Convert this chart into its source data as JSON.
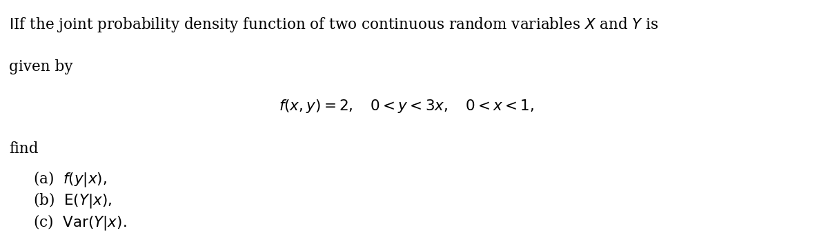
{
  "background_color": "#ffffff",
  "figsize": [
    12.0,
    3.38
  ],
  "dpi": 100,
  "line1": "If the joint probability density function of two continuous random variables $X$ and $Y$ is",
  "line2": "given by",
  "formula": "$f(x, y) = 2, \\quad 0 < y < 3x, \\quad 0 < x < 1,$",
  "find_text": "find",
  "item_a": "(a)\\; $f(y|x),$",
  "item_b": "(b)\\; $\\mathrm{E}(Y|x),$",
  "item_c": "(c)\\; $\\mathrm{Var}(Y|x).$",
  "text_color": "#000000",
  "fontsize_main": 15.5,
  "fontsize_formula": 15.5,
  "fontsize_items": 15.5
}
